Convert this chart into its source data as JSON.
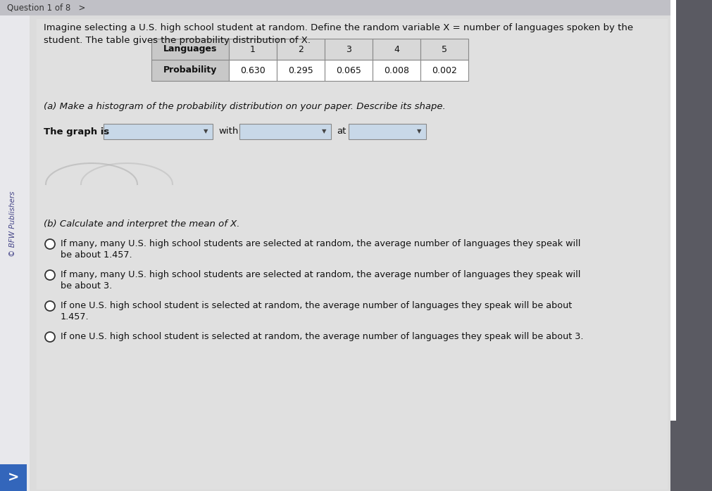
{
  "title_line1": "Imagine selecting a U.S. high school student at random. Define the random variable X = number of languages spoken by the",
  "title_line2": "student. The table gives the probability distribution of X.",
  "table_headers": [
    "Languages",
    "1",
    "2",
    "3",
    "4",
    "5"
  ],
  "table_row": [
    "Probability",
    "0.630",
    "0.295",
    "0.065",
    "0.008",
    "0.002"
  ],
  "part_a_text": "(a) Make a histogram of the probability distribution on your paper. Describe its shape.",
  "graph_is_text": "The graph is",
  "with_text": "with",
  "at_text": "at",
  "part_b_text": "(b) Calculate and interpret the mean of X.",
  "options": [
    [
      "If many, many U.S. high school students are selected at random, the average number of languages they speak will",
      "be about 1.457."
    ],
    [
      "If many, many U.S. high school students are selected at random, the average number of languages they speak will",
      "be about 3."
    ],
    [
      "If one U.S. high school student is selected at random, the average number of languages they speak will be about",
      "1.457."
    ],
    [
      "If one U.S. high school student is selected at random, the average number of languages they speak will be about 3."
    ]
  ],
  "outer_bg": "#b0b0b8",
  "content_bg": "#dcdcdc",
  "sidebar_bg": "#e8e8ec",
  "sidebar_text_color": "#444488",
  "sidebar_text": "© BFW Publishers",
  "table_header_bg": "#c8c8c8",
  "table_cell_bg": "#ffffff",
  "table_border_color": "#888888",
  "dropdown_bg": "#c8d8e8",
  "dropdown_border": "#888888",
  "text_color": "#111111",
  "circle_color": "#333333",
  "blue_arrow_bg": "#3366bb",
  "header_bar_bg": "#c8c8cc",
  "header_text": "Question 1 of 8   >",
  "curve_color": "#aaaaaa"
}
